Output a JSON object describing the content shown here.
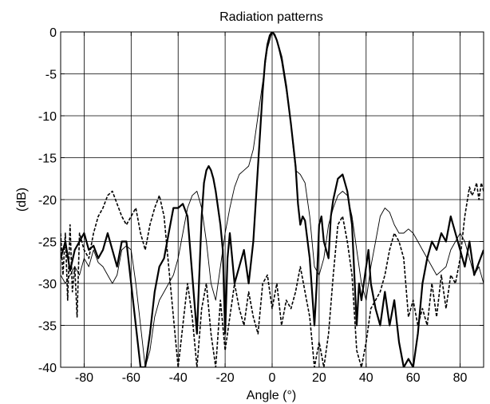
{
  "chart_data": {
    "type": "line",
    "title": "Radiation patterns",
    "xlabel": "Angle (°)",
    "ylabel": "(dB)",
    "xlim": [
      -90,
      90
    ],
    "ylim": [
      -40,
      0
    ],
    "xticks": [
      -80,
      -60,
      -40,
      -20,
      0,
      20,
      40,
      60,
      80
    ],
    "yticks": [
      0,
      -5,
      -10,
      -15,
      -20,
      -25,
      -30,
      -35,
      -40
    ],
    "grid": true,
    "legend": "none",
    "series": [
      {
        "style": "thick-solid",
        "points": [
          [
            -90,
            -27
          ],
          [
            -88,
            -25
          ],
          [
            -86,
            -28.5
          ],
          [
            -84,
            -26
          ],
          [
            -82,
            -25
          ],
          [
            -80,
            -24
          ],
          [
            -78,
            -26
          ],
          [
            -76,
            -25.5
          ],
          [
            -74,
            -27
          ],
          [
            -72,
            -26
          ],
          [
            -70,
            -24
          ],
          [
            -68,
            -26
          ],
          [
            -66,
            -28
          ],
          [
            -64,
            -25
          ],
          [
            -62,
            -25
          ],
          [
            -60,
            -30
          ],
          [
            -58,
            -35
          ],
          [
            -56,
            -40
          ],
          [
            -54,
            -40
          ],
          [
            -52,
            -36
          ],
          [
            -50,
            -31
          ],
          [
            -48,
            -28
          ],
          [
            -46,
            -27
          ],
          [
            -44,
            -24
          ],
          [
            -42,
            -21
          ],
          [
            -40,
            -21
          ],
          [
            -38,
            -20.5
          ],
          [
            -36,
            -22
          ],
          [
            -34,
            -29
          ],
          [
            -32,
            -36
          ],
          [
            -30,
            -22
          ],
          [
            -29,
            -18
          ],
          [
            -28,
            -16.5
          ],
          [
            -27,
            -16
          ],
          [
            -26,
            -16.5
          ],
          [
            -25,
            -17.5
          ],
          [
            -24,
            -19
          ],
          [
            -22,
            -23
          ],
          [
            -21,
            -26
          ],
          [
            -20,
            -36
          ],
          [
            -19,
            -27
          ],
          [
            -18,
            -24
          ],
          [
            -16,
            -30
          ],
          [
            -14,
            -28
          ],
          [
            -12,
            -26
          ],
          [
            -10,
            -30
          ],
          [
            -8,
            -25
          ],
          [
            -6,
            -16
          ],
          [
            -4,
            -7
          ],
          [
            -3,
            -3.5
          ],
          [
            -2,
            -1.5
          ],
          [
            -1,
            -0.4
          ],
          [
            0,
            0
          ],
          [
            1,
            -0.3
          ],
          [
            2,
            -1
          ],
          [
            4,
            -3
          ],
          [
            6,
            -6.5
          ],
          [
            8,
            -11
          ],
          [
            10,
            -16
          ],
          [
            11,
            -20.5
          ],
          [
            12,
            -23
          ],
          [
            13,
            -22
          ],
          [
            14,
            -22.5
          ],
          [
            16,
            -27
          ],
          [
            18,
            -35
          ],
          [
            19,
            -30
          ],
          [
            20,
            -23
          ],
          [
            21,
            -22
          ],
          [
            22,
            -25
          ],
          [
            24,
            -27
          ],
          [
            25,
            -22
          ],
          [
            26,
            -20
          ],
          [
            28,
            -17.5
          ],
          [
            30,
            -17
          ],
          [
            32,
            -19
          ],
          [
            34,
            -23
          ],
          [
            36,
            -35
          ],
          [
            37,
            -30
          ],
          [
            38,
            -32
          ],
          [
            40,
            -28
          ],
          [
            41,
            -26
          ],
          [
            42,
            -30
          ],
          [
            44,
            -33
          ],
          [
            46,
            -35
          ],
          [
            48,
            -31
          ],
          [
            50,
            -35
          ],
          [
            52,
            -32
          ],
          [
            54,
            -37
          ],
          [
            56,
            -40
          ],
          [
            58,
            -39
          ],
          [
            60,
            -40
          ],
          [
            62,
            -36
          ],
          [
            64,
            -30
          ],
          [
            66,
            -27
          ],
          [
            68,
            -25
          ],
          [
            70,
            -26
          ],
          [
            72,
            -24
          ],
          [
            74,
            -25
          ],
          [
            76,
            -22
          ],
          [
            78,
            -24
          ],
          [
            80,
            -26
          ],
          [
            82,
            -28
          ],
          [
            84,
            -25
          ],
          [
            86,
            -29
          ],
          [
            88,
            -27.5
          ],
          [
            90,
            -26
          ]
        ]
      },
      {
        "style": "thin-solid",
        "points": [
          [
            -90,
            -29
          ],
          [
            -88,
            -30
          ],
          [
            -86,
            -29
          ],
          [
            -84,
            -28
          ],
          [
            -82,
            -29
          ],
          [
            -80,
            -27
          ],
          [
            -78,
            -28
          ],
          [
            -76,
            -26
          ],
          [
            -74,
            -27.5
          ],
          [
            -72,
            -28
          ],
          [
            -70,
            -29
          ],
          [
            -68,
            -30
          ],
          [
            -66,
            -29
          ],
          [
            -64,
            -26
          ],
          [
            -62,
            -25.5
          ],
          [
            -60,
            -26
          ],
          [
            -58,
            -30
          ],
          [
            -56,
            -35
          ],
          [
            -54,
            -40
          ],
          [
            -52,
            -38
          ],
          [
            -50,
            -34
          ],
          [
            -48,
            -32
          ],
          [
            -46,
            -31
          ],
          [
            -44,
            -30
          ],
          [
            -42,
            -29
          ],
          [
            -40,
            -27
          ],
          [
            -38,
            -24
          ],
          [
            -36,
            -21
          ],
          [
            -34,
            -19.5
          ],
          [
            -32,
            -19
          ],
          [
            -30,
            -21
          ],
          [
            -28,
            -25
          ],
          [
            -26,
            -30
          ],
          [
            -24,
            -32
          ],
          [
            -22,
            -28
          ],
          [
            -20,
            -24
          ],
          [
            -18,
            -21
          ],
          [
            -16,
            -18.5
          ],
          [
            -14,
            -17
          ],
          [
            -12,
            -16.5
          ],
          [
            -10,
            -16
          ],
          [
            -8,
            -14
          ],
          [
            -6,
            -10
          ],
          [
            -4,
            -6
          ],
          [
            -2,
            -2
          ],
          [
            0,
            0
          ],
          [
            2,
            -1
          ],
          [
            4,
            -3.5
          ],
          [
            6,
            -7
          ],
          [
            8,
            -11
          ],
          [
            9,
            -14
          ],
          [
            10,
            -16.5
          ],
          [
            12,
            -17
          ],
          [
            14,
            -18
          ],
          [
            16,
            -22
          ],
          [
            18,
            -28
          ],
          [
            20,
            -29
          ],
          [
            22,
            -27
          ],
          [
            24,
            -23
          ],
          [
            26,
            -21
          ],
          [
            28,
            -19.5
          ],
          [
            30,
            -19
          ],
          [
            32,
            -19.5
          ],
          [
            34,
            -22
          ],
          [
            36,
            -26
          ],
          [
            38,
            -30
          ],
          [
            40,
            -32
          ],
          [
            42,
            -28
          ],
          [
            44,
            -25
          ],
          [
            46,
            -22
          ],
          [
            48,
            -21
          ],
          [
            50,
            -21.5
          ],
          [
            52,
            -23
          ],
          [
            54,
            -24
          ],
          [
            56,
            -24
          ],
          [
            58,
            -23.5
          ],
          [
            60,
            -24
          ],
          [
            62,
            -25
          ],
          [
            64,
            -26
          ],
          [
            66,
            -27
          ],
          [
            68,
            -28
          ],
          [
            70,
            -29
          ],
          [
            72,
            -28.5
          ],
          [
            74,
            -28
          ],
          [
            76,
            -26
          ],
          [
            78,
            -25
          ],
          [
            80,
            -24
          ],
          [
            82,
            -25
          ],
          [
            84,
            -27
          ],
          [
            86,
            -29
          ],
          [
            88,
            -28
          ],
          [
            90,
            -30
          ]
        ]
      },
      {
        "style": "dashed",
        "points": [
          [
            -90,
            -24
          ],
          [
            -89,
            -29
          ],
          [
            -88,
            -24
          ],
          [
            -87,
            -32
          ],
          [
            -86,
            -23
          ],
          [
            -85,
            -31
          ],
          [
            -84,
            -28
          ],
          [
            -83,
            -34
          ],
          [
            -82,
            -24
          ],
          [
            -80,
            -26
          ],
          [
            -78,
            -27
          ],
          [
            -76,
            -24
          ],
          [
            -74,
            -22
          ],
          [
            -72,
            -21
          ],
          [
            -70,
            -19.5
          ],
          [
            -68,
            -19
          ],
          [
            -66,
            -20.5
          ],
          [
            -64,
            -22
          ],
          [
            -62,
            -23
          ],
          [
            -60,
            -22
          ],
          [
            -58,
            -21
          ],
          [
            -56,
            -24
          ],
          [
            -54,
            -26
          ],
          [
            -52,
            -23
          ],
          [
            -50,
            -21
          ],
          [
            -48,
            -19.5
          ],
          [
            -46,
            -22
          ],
          [
            -44,
            -28
          ],
          [
            -42,
            -34
          ],
          [
            -40,
            -40
          ],
          [
            -38,
            -35
          ],
          [
            -36,
            -30
          ],
          [
            -34,
            -34
          ],
          [
            -32,
            -40
          ],
          [
            -30,
            -33
          ],
          [
            -28,
            -30
          ],
          [
            -26,
            -36
          ],
          [
            -24,
            -40
          ],
          [
            -22,
            -32
          ],
          [
            -20,
            -38
          ],
          [
            -18,
            -34
          ],
          [
            -16,
            -30
          ],
          [
            -14,
            -33
          ],
          [
            -12,
            -35
          ],
          [
            -10,
            -31
          ],
          [
            -8,
            -34
          ],
          [
            -6,
            -36
          ],
          [
            -4,
            -30
          ],
          [
            -2,
            -29
          ],
          [
            0,
            -33
          ],
          [
            2,
            -30
          ],
          [
            4,
            -35
          ],
          [
            6,
            -32
          ],
          [
            8,
            -33
          ],
          [
            10,
            -31
          ],
          [
            12,
            -28
          ],
          [
            14,
            -31
          ],
          [
            16,
            -34
          ],
          [
            18,
            -40
          ],
          [
            20,
            -37
          ],
          [
            22,
            -40
          ],
          [
            24,
            -36
          ],
          [
            26,
            -29
          ],
          [
            28,
            -23
          ],
          [
            30,
            -22
          ],
          [
            32,
            -25
          ],
          [
            34,
            -29
          ],
          [
            36,
            -38
          ],
          [
            38,
            -40
          ],
          [
            40,
            -37
          ],
          [
            42,
            -33
          ],
          [
            44,
            -32
          ],
          [
            46,
            -31
          ],
          [
            48,
            -29
          ],
          [
            50,
            -26
          ],
          [
            52,
            -24
          ],
          [
            54,
            -25
          ],
          [
            56,
            -27
          ],
          [
            58,
            -34
          ],
          [
            60,
            -32
          ],
          [
            62,
            -35
          ],
          [
            64,
            -33
          ],
          [
            66,
            -35
          ],
          [
            68,
            -30
          ],
          [
            70,
            -34
          ],
          [
            72,
            -29
          ],
          [
            74,
            -33
          ],
          [
            76,
            -29
          ],
          [
            78,
            -30
          ],
          [
            80,
            -27
          ],
          [
            82,
            -22
          ],
          [
            84,
            -18.5
          ],
          [
            85,
            -19.5
          ],
          [
            86,
            -19
          ],
          [
            87,
            -18
          ],
          [
            88,
            -20
          ],
          [
            89,
            -18
          ],
          [
            90,
            -19
          ]
        ]
      }
    ]
  }
}
